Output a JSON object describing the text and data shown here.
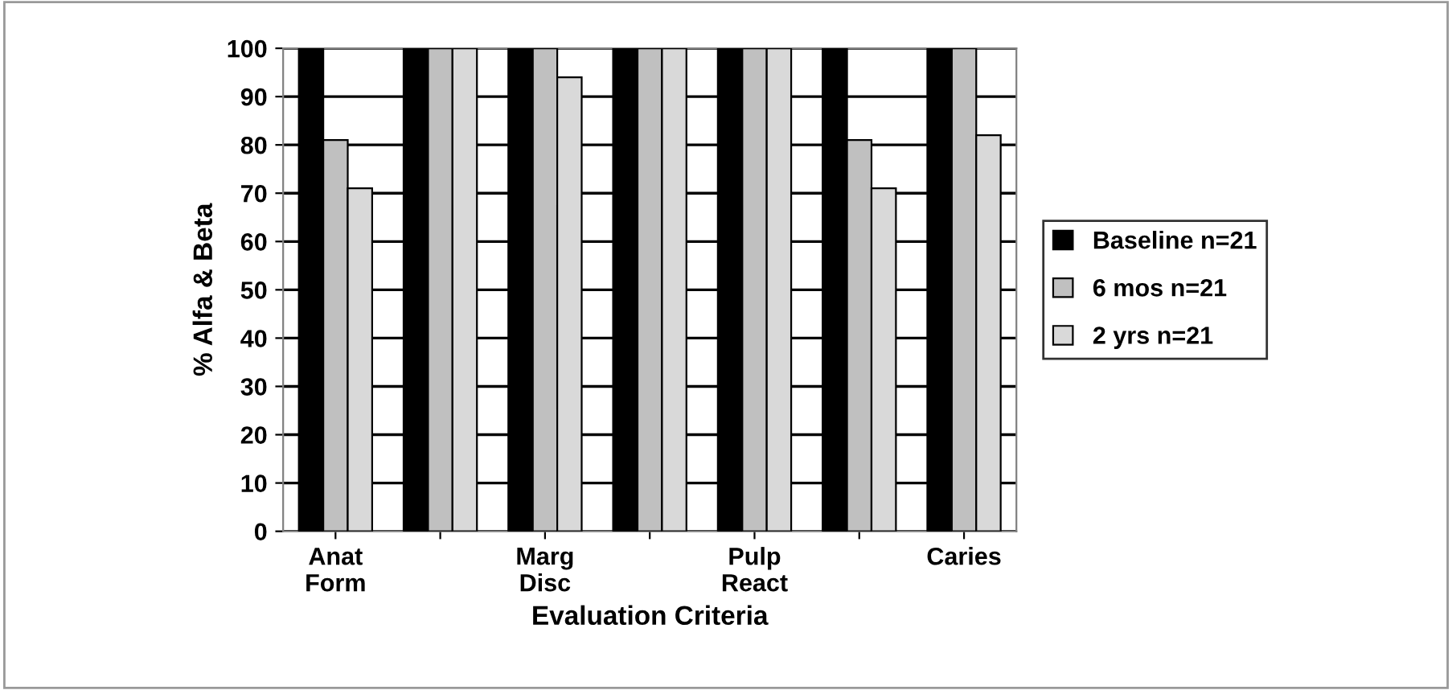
{
  "chart_data": {
    "type": "bar",
    "xlabel": "Evaluation Criteria",
    "ylabel": "% Alfa & Beta",
    "categories": [
      "Anat\nForm",
      null,
      "Marg\nDisc",
      null,
      "Pulp\nReact",
      null,
      "Caries"
    ],
    "series": [
      {
        "name": "Baseline n=21",
        "color": "#000000",
        "values": [
          100,
          100,
          100,
          100,
          100,
          100,
          100
        ]
      },
      {
        "name": "6 mos n=21",
        "color": "#c0c0c0",
        "values": [
          81,
          100,
          100,
          100,
          100,
          81,
          100
        ]
      },
      {
        "name": "2 yrs n=21",
        "color": "#d9d9d9",
        "values": [
          71,
          100,
          94,
          100,
          100,
          71,
          82
        ]
      }
    ],
    "ylim": [
      0,
      100
    ],
    "yticks": [
      0,
      10,
      20,
      30,
      40,
      50,
      60,
      70,
      80,
      90,
      100
    ],
    "grid": "y",
    "legend": "right"
  }
}
